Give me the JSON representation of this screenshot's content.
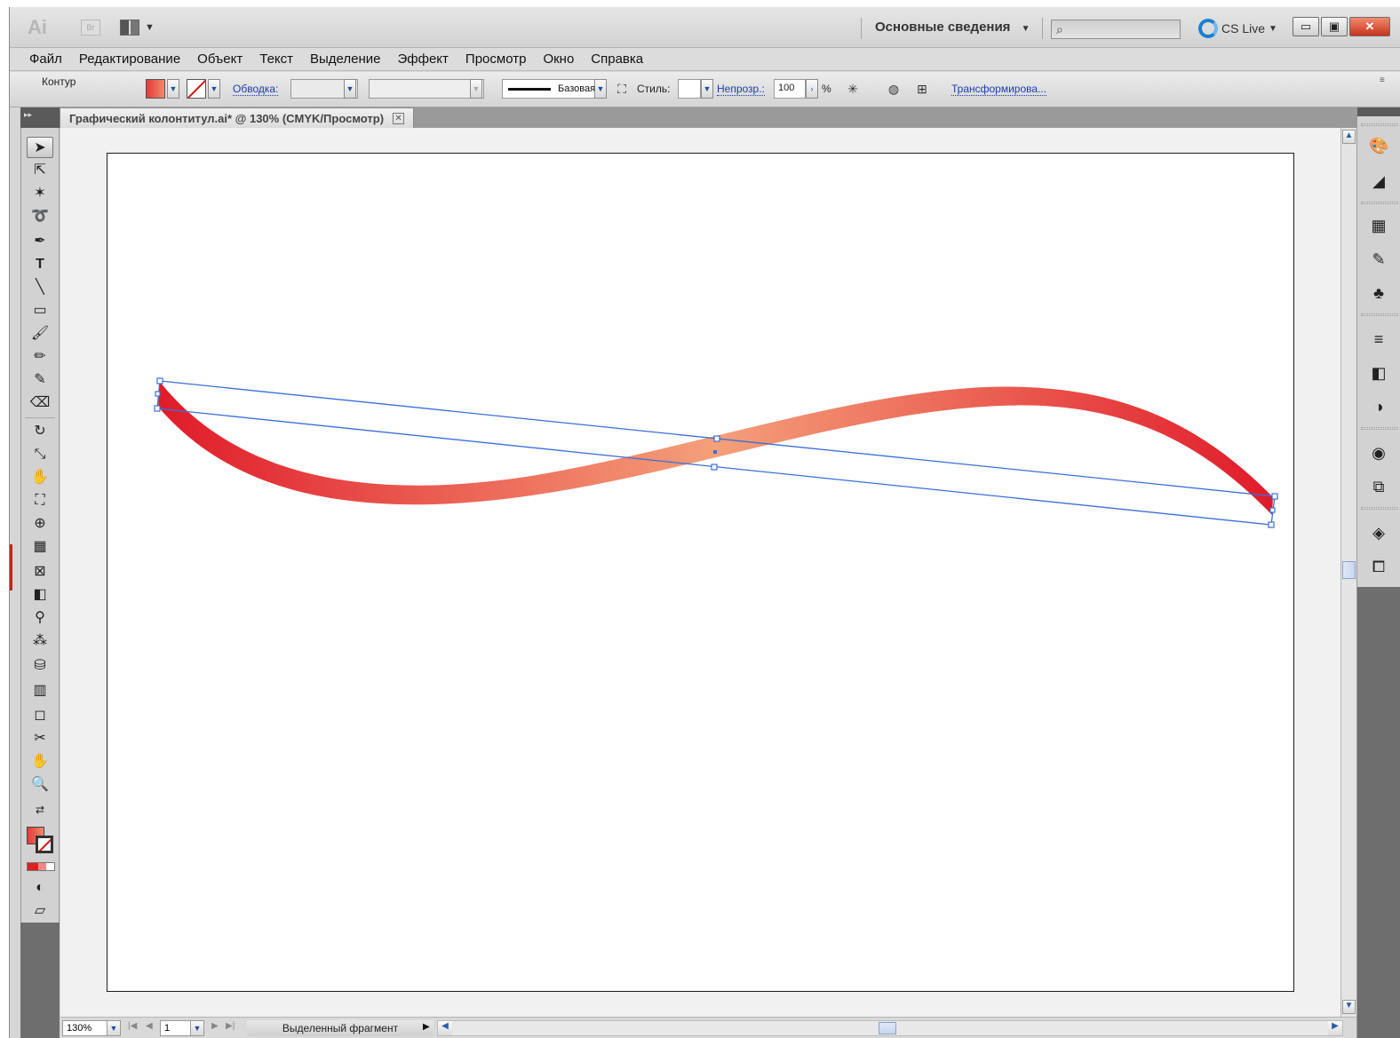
{
  "window": {
    "app_logo": "Ai",
    "bridge_label": "Br",
    "workspace_label": "Основные сведения",
    "workspace_arrow": "▼",
    "search_placeholder": "",
    "cslive_label": "CS Live",
    "cslive_arrow": "▼",
    "min_label": "▭",
    "max_label": "▣",
    "close_label": "✕"
  },
  "menu": {
    "items": [
      "Файл",
      "Редактирование",
      "Объект",
      "Текст",
      "Выделение",
      "Эффект",
      "Просмотр",
      "Окно",
      "Справка"
    ]
  },
  "control": {
    "selection_type": "Контур",
    "stroke_label": "Обводка:",
    "profile_label": "Базовая",
    "style_label": "Стиль:",
    "opacity_label": "Непрозр.:",
    "opacity_value": "100",
    "opacity_unit": "%",
    "transform_label": "Трансформирова..."
  },
  "document": {
    "tab_title": "Графический колонтитул.ai* @ 130% (CMYK/Просмотр)",
    "tab_close": "✕"
  },
  "status": {
    "zoom": "130%",
    "page": "1",
    "selection_info": "Выделенный фрагмент"
  },
  "colors": {
    "gradient_edge": "#e01b2a",
    "gradient_mid": "#f4a07a",
    "selection_blue": "#3a6fd8"
  }
}
